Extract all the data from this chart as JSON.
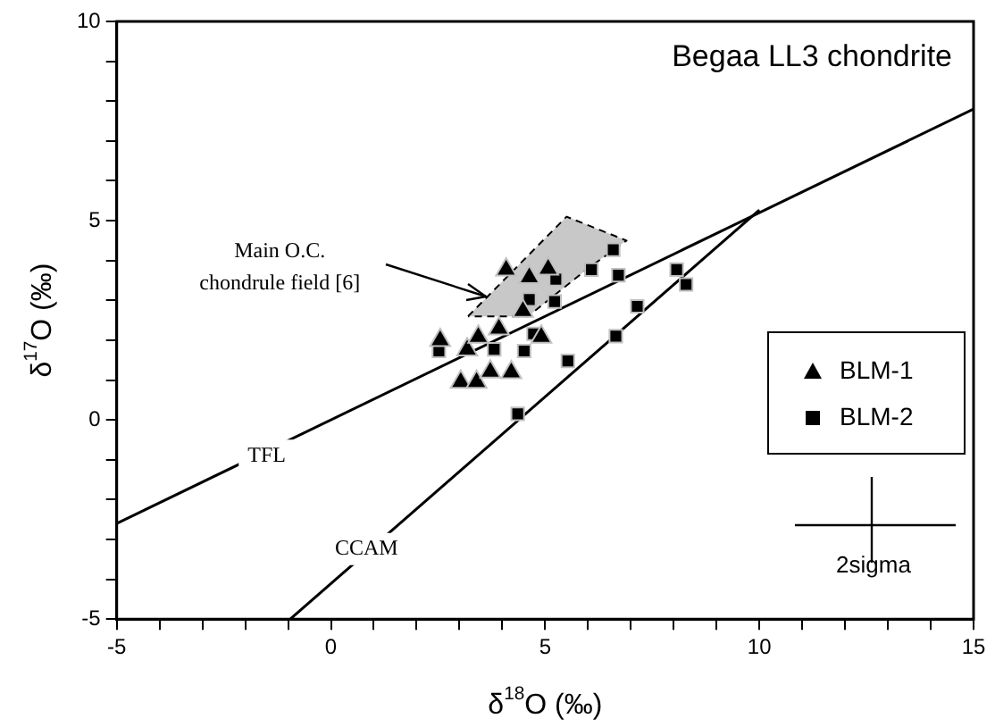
{
  "chart_data": {
    "type": "scatter",
    "xlabel": "δ$^{18}$O (‰)",
    "ylabel": "δ$^{17}$O (‰)",
    "xlim": [
      -5,
      15
    ],
    "ylim": [
      -5,
      10
    ],
    "xticks": [
      -5,
      {
        "value": -4,
        "label": null
      },
      {
        "value": -3,
        "label": null
      },
      {
        "value": -2,
        "label": null
      },
      {
        "value": -1,
        "label": null
      },
      0,
      {
        "value": 1,
        "label": null
      },
      {
        "value": 2,
        "label": null
      },
      {
        "value": 3,
        "label": null
      },
      {
        "value": 4,
        "label": null
      },
      5,
      {
        "value": 6,
        "label": null
      },
      {
        "value": 7,
        "label": null
      },
      {
        "value": 8,
        "label": null
      },
      {
        "value": 9,
        "label": null
      },
      10,
      {
        "value": 11,
        "label": null
      },
      {
        "value": 12,
        "label": null
      },
      {
        "value": 13,
        "label": null
      },
      {
        "value": 14,
        "label": null
      },
      15
    ],
    "yticks": [
      -5,
      {
        "value": -4,
        "label": null
      },
      {
        "value": -3,
        "label": null
      },
      {
        "value": -2,
        "label": null
      },
      {
        "value": -1,
        "label": null
      },
      0,
      {
        "value": 1,
        "label": null
      },
      {
        "value": 2,
        "label": null
      },
      {
        "value": 3,
        "label": null
      },
      {
        "value": 4,
        "label": null
      },
      5,
      {
        "value": 6,
        "label": null
      },
      {
        "value": 7,
        "label": null
      },
      {
        "value": 8,
        "label": null
      },
      {
        "value": 9,
        "label": null
      },
      10
    ],
    "grid": false,
    "legend": "right",
    "series": [
      {
        "type": "area",
        "color": "#c8c8c8",
        "line_style": "dashed",
        "x": [
          3.2,
          5.5,
          6.9,
          6.0,
          4.6,
          3.2
        ],
        "values": [
          2.6,
          5.1,
          4.5,
          3.8,
          2.6,
          2.6
        ]
      },
      {
        "type": "line",
        "color": "#000000",
        "line_style": "solid",
        "x": [
          -5,
          15
        ],
        "values": [
          -2.6,
          7.8
        ]
      },
      {
        "type": "line",
        "color": "#000000",
        "line_style": "solid",
        "x": [
          -0.95,
          10
        ],
        "values": [
          -5,
          5.27
        ]
      },
      {
        "name": "BLM-1",
        "color": "#000000",
        "marker": "triangle",
        "x": [
          4.09,
          4.63,
          5.07,
          3.92,
          3.18,
          3.44,
          2.55,
          3.03,
          3.4,
          3.72,
          4.21,
          4.91,
          4.48
        ],
        "values": [
          3.77,
          3.58,
          3.79,
          2.29,
          1.76,
          2.08,
          2.0,
          0.95,
          0.95,
          1.21,
          1.19,
          2.08,
          2.73
        ]
      },
      {
        "name": "BLM-2",
        "color": "#000000",
        "marker": "square",
        "x": [
          2.52,
          3.81,
          4.51,
          4.73,
          4.63,
          5.22,
          5.25,
          6.08,
          6.59,
          6.71,
          5.53,
          6.65,
          7.15,
          8.07,
          8.29,
          4.36
        ],
        "values": [
          1.73,
          1.77,
          1.73,
          2.16,
          3.02,
          2.97,
          3.53,
          3.77,
          4.27,
          3.63,
          1.48,
          2.1,
          2.85,
          3.77,
          3.4,
          0.15
        ]
      }
    ],
    "annotations": [
      "Begaa LL3 chondrite",
      {
        "text": "Main O.C. chondrule field [6]",
        "x": 3.6,
        "y": 3.1
      },
      {
        "text": "TFL",
        "x": -1.5,
        "y": -0.9
      },
      {
        "text": "CCAM",
        "x": 0.83,
        "y": -3.24
      },
      "2sigma"
    ]
  }
}
